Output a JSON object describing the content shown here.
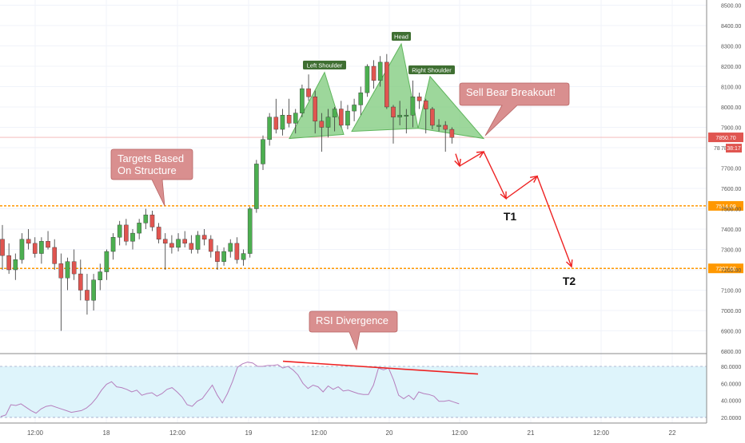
{
  "colors": {
    "up": "#4caf50",
    "down": "#e05550",
    "arrow": "#ee2222",
    "level": "#ff9800",
    "pattern_fill": "#7cc97a",
    "bubble_fill": "#d98f8f",
    "label_green": "#3f6f32",
    "rsi_line": "#b57ebd",
    "rsi_band": "#def4fb",
    "price_tag": "#e05550"
  },
  "chart_data": {
    "type": "candlestick",
    "price_axis": {
      "ticks": [
        "8500.00",
        "8400.00",
        "8300.00",
        "8200.00",
        "8100.00",
        "8000.00",
        "7900.00",
        "7800.00",
        "7700.00",
        "7600.00",
        "7500.00",
        "7400.00",
        "7300.00",
        "7200.00",
        "7100.00",
        "7000.00",
        "6900.00",
        "6800.00"
      ],
      "range": [
        6800,
        8500
      ]
    },
    "time_axis": {
      "ticks": [
        "12:00",
        "18",
        "12:00",
        "19",
        "12:00",
        "20",
        "12:00",
        "21",
        "12:00",
        "22"
      ]
    },
    "levels": [
      {
        "value": 7514,
        "label": "7514.09"
      },
      {
        "value": 7207,
        "label": "7207.00"
      }
    ],
    "last_price": {
      "value": 7850.7,
      "label": "7850.70",
      "countdown": "38:17",
      "partial_tick": "78"
    },
    "candles": [
      [
        7350,
        7420,
        7200,
        7270
      ],
      [
        7270,
        7330,
        7180,
        7200
      ],
      [
        7200,
        7280,
        7150,
        7250
      ],
      [
        7250,
        7380,
        7230,
        7350
      ],
      [
        7350,
        7400,
        7300,
        7330
      ],
      [
        7330,
        7360,
        7260,
        7280
      ],
      [
        7280,
        7360,
        7230,
        7340
      ],
      [
        7340,
        7390,
        7300,
        7310
      ],
      [
        7310,
        7350,
        7200,
        7230
      ],
      [
        7230,
        7280,
        6900,
        7160
      ],
      [
        7160,
        7260,
        7100,
        7240
      ],
      [
        7240,
        7300,
        7150,
        7180
      ],
      [
        7180,
        7250,
        7050,
        7100
      ],
      [
        7100,
        7180,
        6980,
        7050
      ],
      [
        7050,
        7180,
        7000,
        7150
      ],
      [
        7150,
        7230,
        7100,
        7190
      ],
      [
        7190,
        7300,
        7150,
        7290
      ],
      [
        7290,
        7380,
        7250,
        7360
      ],
      [
        7360,
        7440,
        7320,
        7420
      ],
      [
        7420,
        7450,
        7320,
        7340
      ],
      [
        7340,
        7400,
        7300,
        7380
      ],
      [
        7380,
        7450,
        7350,
        7430
      ],
      [
        7430,
        7500,
        7400,
        7470
      ],
      [
        7470,
        7490,
        7390,
        7410
      ],
      [
        7410,
        7430,
        7330,
        7350
      ],
      [
        7350,
        7380,
        7200,
        7330
      ],
      [
        7330,
        7370,
        7280,
        7310
      ],
      [
        7310,
        7380,
        7290,
        7350
      ],
      [
        7350,
        7390,
        7310,
        7330
      ],
      [
        7330,
        7370,
        7280,
        7300
      ],
      [
        7300,
        7390,
        7280,
        7370
      ],
      [
        7370,
        7400,
        7320,
        7350
      ],
      [
        7350,
        7370,
        7260,
        7290
      ],
      [
        7290,
        7320,
        7200,
        7240
      ],
      [
        7240,
        7310,
        7220,
        7290
      ],
      [
        7290,
        7350,
        7260,
        7330
      ],
      [
        7330,
        7360,
        7230,
        7250
      ],
      [
        7250,
        7300,
        7220,
        7280
      ],
      [
        7280,
        7510,
        7260,
        7500
      ],
      [
        7500,
        7740,
        7480,
        7720
      ],
      [
        7720,
        7860,
        7690,
        7840
      ],
      [
        7840,
        7970,
        7810,
        7950
      ],
      [
        7950,
        8040,
        7870,
        7890
      ],
      [
        7890,
        7990,
        7860,
        7960
      ],
      [
        7960,
        8040,
        7900,
        7920
      ],
      [
        7920,
        7990,
        7870,
        7970
      ],
      [
        7970,
        8110,
        7950,
        8090
      ],
      [
        8090,
        8160,
        8030,
        8050
      ],
      [
        8050,
        8080,
        7870,
        7930
      ],
      [
        7930,
        7970,
        7780,
        7900
      ],
      [
        7900,
        7990,
        7850,
        7950
      ],
      [
        7950,
        8000,
        7880,
        7990
      ],
      [
        7990,
        8030,
        7900,
        7910
      ],
      [
        7910,
        8010,
        7890,
        7980
      ],
      [
        7980,
        8040,
        7930,
        8010
      ],
      [
        8010,
        8100,
        7960,
        8070
      ],
      [
        8070,
        8210,
        8050,
        8200
      ],
      [
        8200,
        8230,
        8090,
        8130
      ],
      [
        8130,
        8250,
        8100,
        8220
      ],
      [
        8220,
        8260,
        7990,
        8000
      ],
      [
        8000,
        8010,
        7820,
        7950
      ],
      [
        7950,
        8030,
        7910,
        7960
      ],
      [
        7960,
        7990,
        7870,
        7960
      ],
      [
        7960,
        8130,
        7900,
        8050
      ],
      [
        8050,
        8070,
        7990,
        8030
      ],
      [
        8030,
        8040,
        7870,
        7990
      ],
      [
        7990,
        8000,
        7890,
        7910
      ],
      [
        7910,
        7940,
        7880,
        7910
      ],
      [
        7910,
        7930,
        7780,
        7890
      ],
      [
        7890,
        7900,
        7820,
        7850
      ]
    ],
    "annotations": {
      "pattern_labels": {
        "left": "Left Shoulder",
        "head": "Head",
        "right": "Right Shoulder"
      },
      "bubbles": {
        "sell": "Sell Bear Breakout!",
        "targets_line1": "Targets Based",
        "targets_line2": "On Structure",
        "rsi": "RSI Divergence"
      },
      "targets": {
        "t1": "T1",
        "t2": "T2"
      }
    },
    "rsi": {
      "ticks": [
        "80.0000",
        "60.0000",
        "40.0000",
        "20.0000"
      ],
      "range": [
        15,
        88
      ],
      "bands": [
        80,
        20
      ],
      "values": [
        21,
        23,
        35,
        34,
        36,
        32,
        28,
        25,
        30,
        33,
        34,
        32,
        30,
        28,
        26,
        27,
        28,
        31,
        36,
        43,
        52,
        59,
        62,
        56,
        55,
        53,
        50,
        52,
        46,
        48,
        49,
        45,
        48,
        53,
        55,
        50,
        44,
        35,
        33,
        39,
        42,
        50,
        58,
        46,
        37,
        48,
        62,
        79,
        83,
        85,
        84,
        80,
        80,
        81,
        81,
        82,
        78,
        80,
        76,
        70,
        60,
        54,
        58,
        56,
        50,
        57,
        53,
        56,
        51,
        52,
        50,
        48,
        47,
        47,
        58,
        78,
        76,
        78,
        64,
        46,
        42,
        46,
        41,
        50,
        48,
        47,
        45,
        39,
        39,
        40,
        38,
        36
      ]
    }
  }
}
